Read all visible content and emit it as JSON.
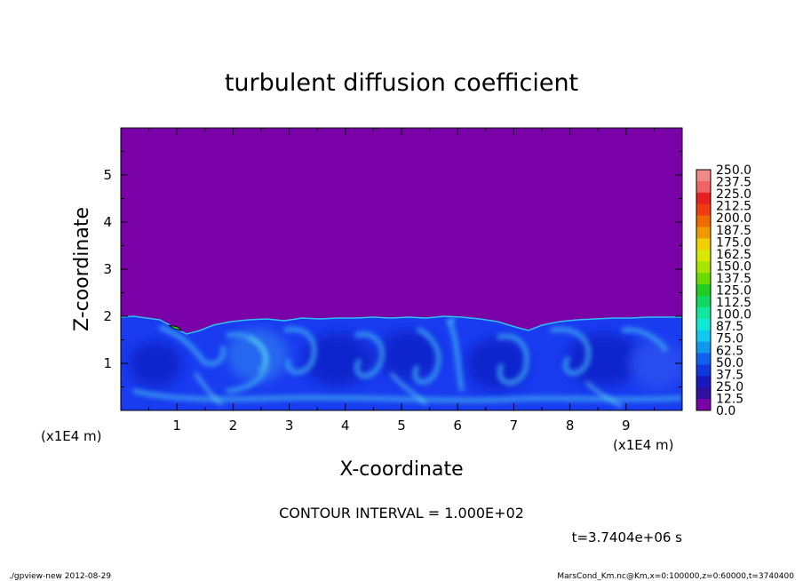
{
  "chart_data": {
    "type": "heatmap",
    "title": "turbulent diffusion coefficient",
    "xlabel": "X-coordinate",
    "ylabel": "Z-coordinate",
    "x_unit": "(x1E4 m)",
    "z_unit": "(x1E4 m)",
    "xlim": [
      0,
      10
    ],
    "ylim": [
      0,
      6
    ],
    "x_ticks": [
      1,
      2,
      3,
      4,
      5,
      6,
      7,
      8,
      9
    ],
    "y_ticks": [
      1,
      2,
      3,
      4,
      5
    ],
    "colorbar": {
      "levels": [
        "250.0",
        "237.5",
        "225.0",
        "212.5",
        "200.0",
        "187.5",
        "175.0",
        "162.5",
        "150.0",
        "137.5",
        "125.0",
        "112.5",
        "100.0",
        "87.5",
        "75.0",
        "62.5",
        "50.0",
        "37.5",
        "25.0",
        "12.5",
        "0.0"
      ],
      "colors": [
        "#f08a8a",
        "#f06464",
        "#e82020",
        "#f03c10",
        "#f06a00",
        "#f09a00",
        "#f0d000",
        "#d8e800",
        "#a8e400",
        "#6cdc00",
        "#20cc20",
        "#10d860",
        "#10e8a0",
        "#10e8d8",
        "#10c8f0",
        "#1098f0",
        "#1060f0",
        "#1038e0",
        "#1818c0",
        "#3010a0",
        "#7a00a8"
      ]
    },
    "background_value": "0.0",
    "turbulent_layer_top": 2.0,
    "contour_interval": "CONTOUR INTERVAL = 1.000E+02",
    "time": "t=3.7404e+06 s"
  },
  "footer": {
    "left": "./gpview-new  2012-08-29",
    "right": "MarsCond_Km.nc@Km,x=0:100000,z=0:60000,t=3740400"
  },
  "colors": {
    "background_purple": "#7a00a8",
    "layer_blue": "#1a3cf0"
  }
}
